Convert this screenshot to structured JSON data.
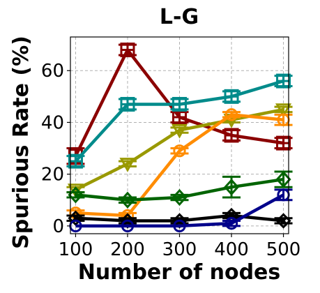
{
  "chart_data": {
    "type": "line",
    "title": "L-G",
    "xlabel": "Number of nodes",
    "ylabel": "Spurious Rate (%)",
    "x": [
      100,
      200,
      300,
      400,
      500
    ],
    "xlim": [
      90,
      510
    ],
    "ylim": [
      -3,
      73
    ],
    "xticks": [
      100,
      200,
      300,
      400,
      500
    ],
    "yticks": [
      0,
      20,
      40,
      60
    ],
    "grid": true,
    "series": [
      {
        "color": "#8b0000",
        "marker": "square-plus",
        "values": [
          27,
          68,
          42,
          35,
          32
        ],
        "errors": [
          3,
          2,
          2,
          2,
          2
        ]
      },
      {
        "color": "#008b8b",
        "marker": "square-plus",
        "values": [
          25,
          47,
          47,
          50,
          56
        ],
        "errors": [
          2,
          2,
          2,
          2,
          2
        ]
      },
      {
        "color": "#999900",
        "marker": "triangle-down",
        "values": [
          14,
          24,
          37,
          41,
          45
        ],
        "errors": [
          1,
          1,
          1,
          1,
          1
        ]
      },
      {
        "color": "#ff8c00",
        "marker": "circle",
        "values": [
          5,
          4,
          29,
          43,
          41
        ],
        "errors": [
          1,
          1,
          1,
          1,
          2
        ]
      },
      {
        "color": "#006400",
        "marker": "diamond",
        "values": [
          12,
          10,
          11,
          15,
          18
        ],
        "errors": [
          1,
          1,
          1,
          4,
          3
        ]
      },
      {
        "color": "#000000",
        "marker": "x",
        "values": [
          3,
          2,
          2,
          4,
          2
        ],
        "errors": [
          1,
          1,
          1,
          1,
          1
        ]
      },
      {
        "color": "#00008b",
        "marker": "circle",
        "values": [
          0,
          0,
          0,
          1,
          12
        ],
        "errors": [
          0,
          0,
          0,
          1,
          2
        ]
      }
    ]
  }
}
